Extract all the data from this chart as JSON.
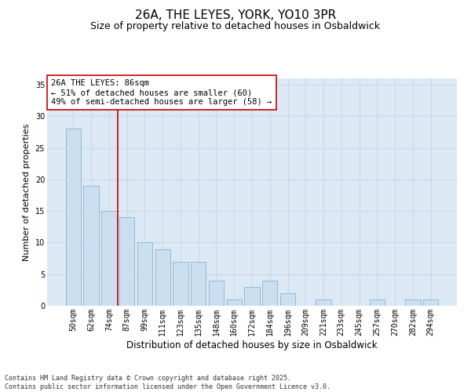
{
  "title": "26A, THE LEYES, YORK, YO10 3PR",
  "subtitle": "Size of property relative to detached houses in Osbaldwick",
  "xlabel": "Distribution of detached houses by size in Osbaldwick",
  "ylabel": "Number of detached properties",
  "categories": [
    "50sqm",
    "62sqm",
    "74sqm",
    "87sqm",
    "99sqm",
    "111sqm",
    "123sqm",
    "135sqm",
    "148sqm",
    "160sqm",
    "172sqm",
    "184sqm",
    "196sqm",
    "209sqm",
    "221sqm",
    "233sqm",
    "245sqm",
    "257sqm",
    "270sqm",
    "282sqm",
    "294sqm"
  ],
  "values": [
    28,
    19,
    15,
    14,
    10,
    9,
    7,
    7,
    4,
    1,
    3,
    4,
    2,
    0,
    1,
    0,
    0,
    1,
    0,
    1,
    1
  ],
  "bar_color": "#ccdff0",
  "bar_edge_color": "#8ab4d4",
  "vline_color": "#cc0000",
  "vline_x_index": 3,
  "annotation_text": "26A THE LEYES: 86sqm\n← 51% of detached houses are smaller (60)\n49% of semi-detached houses are larger (58) →",
  "annotation_box_color": "#cc0000",
  "ylim": [
    0,
    36
  ],
  "yticks": [
    0,
    5,
    10,
    15,
    20,
    25,
    30,
    35
  ],
  "grid_color": "#c8d8e8",
  "bg_color": "#dce8f4",
  "footer": "Contains HM Land Registry data © Crown copyright and database right 2025.\nContains public sector information licensed under the Open Government Licence v3.0.",
  "title_fontsize": 11,
  "subtitle_fontsize": 9,
  "xlabel_fontsize": 8.5,
  "ylabel_fontsize": 8,
  "tick_fontsize": 7,
  "annotation_fontsize": 7.5,
  "footer_fontsize": 6
}
